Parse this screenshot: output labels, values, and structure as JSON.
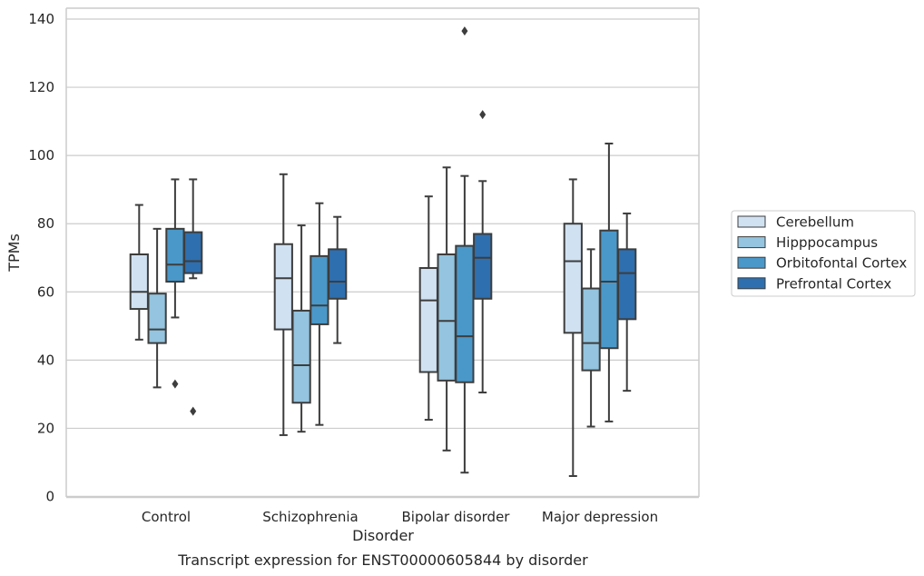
{
  "chart_data": {
    "type": "box",
    "xlabel": "Disorder",
    "ylabel": "TPMs",
    "caption": "Transcript expression for ENST00000605844 by disorder",
    "ylim": [
      0,
      140
    ],
    "yticks": [
      "0",
      "20",
      "40",
      "60",
      "80",
      "100",
      "120",
      "140"
    ],
    "ytick_values": [
      0,
      20,
      40,
      60,
      80,
      100,
      120,
      140
    ],
    "grid": "horizontal",
    "legend_position": "right",
    "categories": [
      "Control",
      "Schizophrenia",
      "Bipolar disorder",
      "Major depression"
    ],
    "series": [
      {
        "name": "Cerebellum",
        "color": "#d0e1f2",
        "boxes": [
          {
            "min": 46,
            "q1": 55,
            "median": 60,
            "q3": 71,
            "max": 85.5,
            "outliers": []
          },
          {
            "min": 18,
            "q1": 49,
            "median": 64,
            "q3": 74,
            "max": 94.5,
            "outliers": []
          },
          {
            "min": 22.5,
            "q1": 36.5,
            "median": 57.5,
            "q3": 67,
            "max": 88,
            "outliers": []
          },
          {
            "min": 6,
            "q1": 48,
            "median": 69,
            "q3": 80,
            "max": 93,
            "outliers": []
          }
        ]
      },
      {
        "name": "Hipppocampus",
        "color": "#94c4df",
        "boxes": [
          {
            "min": 32,
            "q1": 45,
            "median": 49,
            "q3": 59.5,
            "max": 78.5,
            "outliers": []
          },
          {
            "min": 19,
            "q1": 27.5,
            "median": 38.5,
            "q3": 54.5,
            "max": 79.5,
            "outliers": []
          },
          {
            "min": 13.5,
            "q1": 34,
            "median": 51.5,
            "q3": 71,
            "max": 96.5,
            "outliers": []
          },
          {
            "min": 20.5,
            "q1": 37,
            "median": 45,
            "q3": 61,
            "max": 72.5,
            "outliers": []
          }
        ]
      },
      {
        "name": "Orbitofontal Cortex",
        "color": "#4a98c9",
        "boxes": [
          {
            "min": 52.5,
            "q1": 63,
            "median": 68,
            "q3": 78.5,
            "max": 93,
            "outliers": [
              33
            ]
          },
          {
            "min": 21,
            "q1": 50.5,
            "median": 56,
            "q3": 70.5,
            "max": 86,
            "outliers": []
          },
          {
            "min": 7,
            "q1": 33.5,
            "median": 47,
            "q3": 73.5,
            "max": 94,
            "outliers": [
              136.5
            ]
          },
          {
            "min": 22,
            "q1": 43.5,
            "median": 63,
            "q3": 78,
            "max": 103.5,
            "outliers": []
          }
        ]
      },
      {
        "name": "Prefrontal Cortex",
        "color": "#2e6faf",
        "boxes": [
          {
            "min": 64,
            "q1": 65.5,
            "median": 69,
            "q3": 77.5,
            "max": 93,
            "outliers": [
              25
            ]
          },
          {
            "min": 45,
            "q1": 58,
            "median": 63,
            "q3": 72.5,
            "max": 82,
            "outliers": []
          },
          {
            "min": 30.5,
            "q1": 58,
            "median": 70,
            "q3": 77,
            "max": 92.5,
            "outliers": [
              112
            ]
          },
          {
            "min": 31,
            "q1": 52,
            "median": 65.5,
            "q3": 72.5,
            "max": 83,
            "outliers": []
          }
        ]
      }
    ]
  }
}
